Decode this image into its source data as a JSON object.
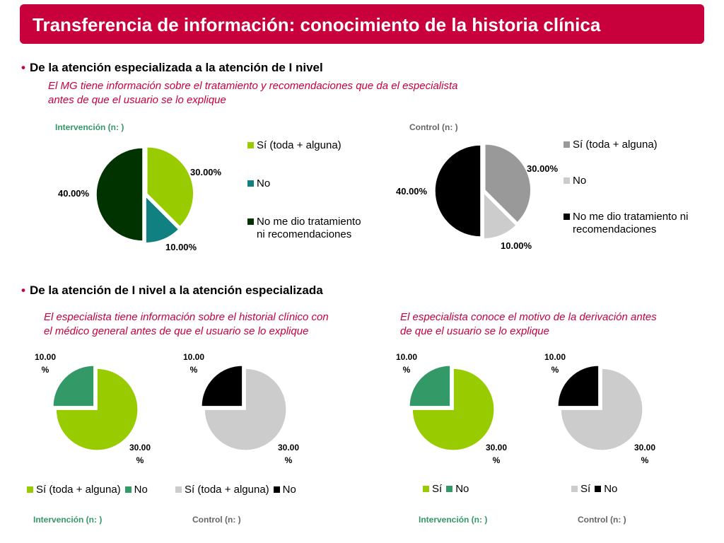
{
  "title": "Transferencia de información: conocimiento de la historia clínica",
  "colors": {
    "brand": "#c8003c",
    "green_light": "#99cc00",
    "teal": "#118080",
    "dark_green": "#003300",
    "grey": "#999999",
    "light_grey": "#cccccc",
    "black": "#000000",
    "sea_green": "#339966",
    "label_green": "#339966",
    "label_grey": "#666666"
  },
  "section1": {
    "bullet": "De la atención especializada a la atención de I nivel",
    "subtitle_line1": "El MG tiene información sobre el tratamiento y recomendaciones que da el especialista",
    "subtitle_line2": "antes de que el usuario se lo explique"
  },
  "section2": {
    "bullet": "De la atención de I nivel a la atención especializada",
    "subtitle_left_line1": "El  especialista tiene información sobre el historial clínico con",
    "subtitle_left_line2": "el médico general antes de que el usuario se lo explique",
    "subtitle_right_line1": "El  especialista conoce el motivo de la derivación antes",
    "subtitle_right_line2": "de que el usuario se lo explique"
  },
  "chart_data": [
    {
      "type": "pie",
      "title": "Intervención (n: )",
      "categories": [
        "Sí (toda + alguna)",
        "No",
        "No me dio tratamiento ni recomendaciones"
      ],
      "legend_lines": [
        [
          "Sí (toda + alguna)"
        ],
        [
          "No"
        ],
        [
          "No me dio tratamiento",
          "ni recomendaciones"
        ]
      ],
      "values": [
        30,
        10,
        40
      ],
      "data_labels": [
        "30.00%",
        "10.00%",
        "40.00%"
      ],
      "colors": [
        "#99cc00",
        "#118080",
        "#003300"
      ],
      "legend": "right"
    },
    {
      "type": "pie",
      "title": "Control  (n: )",
      "categories": [
        "Sí (toda + alguna)",
        "No",
        "No me dio tratamiento ni recomendaciones"
      ],
      "legend_lines": [
        [
          "Sí (toda + alguna)"
        ],
        [
          "No"
        ],
        [
          "No me dio tratamiento ni",
          "recomendaciones"
        ]
      ],
      "values": [
        30,
        10,
        40
      ],
      "data_labels": [
        "30.00%",
        "10.00%",
        "40.00%"
      ],
      "colors": [
        "#999999",
        "#cccccc",
        "#000000"
      ],
      "legend": "right"
    },
    {
      "type": "pie",
      "title": "Intervención (n: )",
      "categories": [
        "Sí (toda + alguna)",
        "No"
      ],
      "values": [
        30,
        10
      ],
      "data_labels": [
        "30.00 %",
        "10.00 %"
      ],
      "colors": [
        "#99cc00",
        "#339966"
      ],
      "legend": "bottom"
    },
    {
      "type": "pie",
      "title": "Control  (n: )",
      "categories": [
        "Sí (toda + alguna)",
        "No"
      ],
      "values": [
        30,
        10
      ],
      "data_labels": [
        "30.00 %",
        "10.00 %"
      ],
      "colors": [
        "#cccccc",
        "#000000"
      ],
      "legend": "bottom"
    },
    {
      "type": "pie",
      "title": "Intervención (n: )",
      "categories": [
        "Sí",
        "No"
      ],
      "values": [
        30,
        10
      ],
      "data_labels": [
        "30.00 %",
        "10.00 %"
      ],
      "colors": [
        "#99cc00",
        "#339966"
      ],
      "legend": "bottom"
    },
    {
      "type": "pie",
      "title": "Control  (n: )",
      "categories": [
        "Sí",
        "No"
      ],
      "values": [
        30,
        10
      ],
      "data_labels": [
        "30.00 %",
        "10.00 %"
      ],
      "colors": [
        "#cccccc",
        "#000000"
      ],
      "legend": "bottom"
    }
  ]
}
